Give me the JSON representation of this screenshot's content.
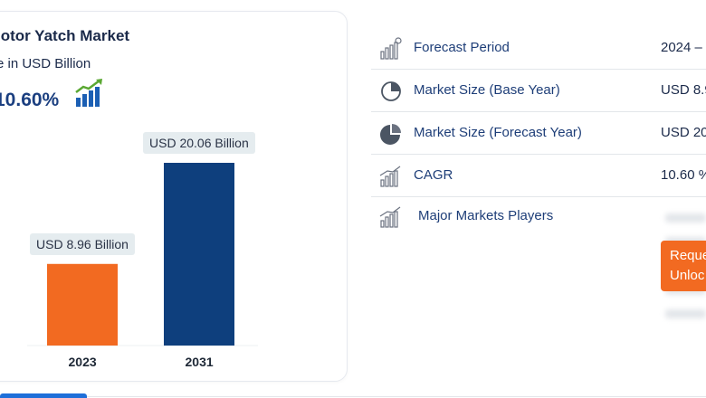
{
  "card": {
    "title": "lotor Yatch Market",
    "subtitle": "e in USD Billion",
    "cagr": "10.60%"
  },
  "chart_data": {
    "type": "bar",
    "categories": [
      "2023",
      "2031"
    ],
    "values": [
      8.96,
      20.06
    ],
    "value_labels": [
      "USD 8.96 Billion",
      "USD 20.06 Billion"
    ],
    "colors": [
      "#f26a21",
      "#0e3f7d"
    ],
    "title": "",
    "xlabel": "",
    "ylabel": "",
    "ylim": [
      0,
      20.06
    ]
  },
  "table": {
    "rows": [
      {
        "label": "Forecast Period",
        "value": "2024 –",
        "icon": "bar-chart-icon"
      },
      {
        "label": "Market Size (Base Year)",
        "value": "USD 8.9",
        "icon": "pie-chart-icon"
      },
      {
        "label": "Market Size (Forecast Year)",
        "value": "USD 20",
        "icon": "pie-chart-filled-icon"
      },
      {
        "label": "CAGR",
        "value": "10.60 %",
        "icon": "growth-bars-icon"
      },
      {
        "label": "Major Markets Players",
        "value": "",
        "icon": "growth-bars-icon"
      }
    ]
  },
  "cta": {
    "line1": "Reque",
    "line2": "Unloc"
  },
  "colors": {
    "accent_orange": "#f26a21",
    "brand_navy": "#0e3f7d",
    "label_blue": "#1e3e78"
  }
}
